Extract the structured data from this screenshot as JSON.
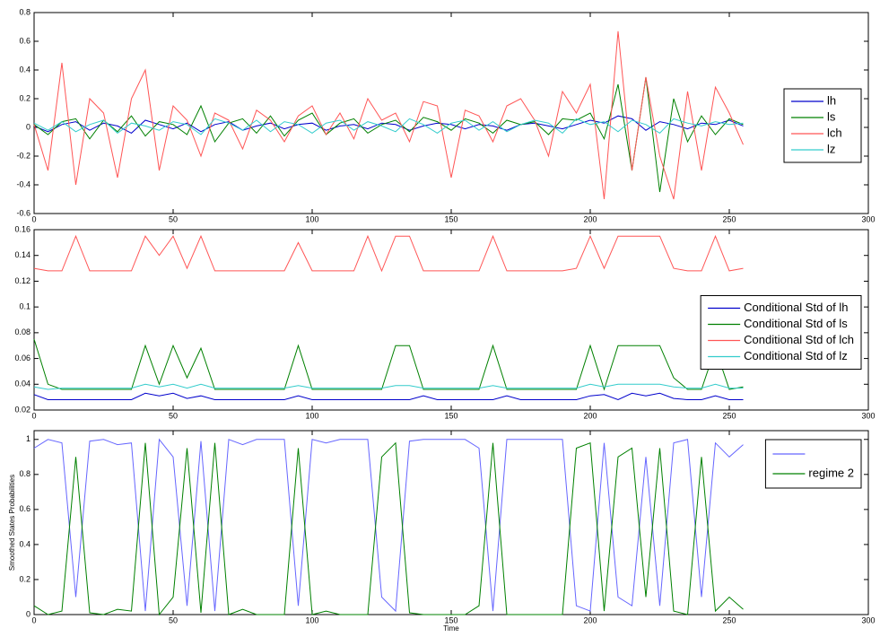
{
  "chart_data": [
    {
      "type": "line",
      "legend": "east",
      "xlim": [
        0,
        300
      ],
      "xticks": [
        0,
        50,
        100,
        150,
        200,
        250,
        300
      ],
      "ylim": [
        -0.6,
        0.8
      ],
      "yticks": [
        -0.6,
        -0.4,
        -0.2,
        0,
        0.2,
        0.4,
        0.6,
        0.8
      ],
      "x": [
        0,
        5,
        10,
        15,
        20,
        25,
        30,
        35,
        40,
        45,
        50,
        55,
        60,
        65,
        70,
        75,
        80,
        85,
        90,
        95,
        100,
        105,
        110,
        115,
        120,
        125,
        130,
        135,
        140,
        145,
        150,
        155,
        160,
        165,
        170,
        175,
        180,
        185,
        190,
        195,
        200,
        205,
        210,
        215,
        220,
        225,
        230,
        235,
        240,
        245,
        250,
        255
      ],
      "series": [
        {
          "name": "lh",
          "color": "#0000cc",
          "values": [
            0.01,
            -0.03,
            0.02,
            0.04,
            -0.02,
            0.03,
            0.01,
            -0.04,
            0.05,
            0.02,
            -0.01,
            0.03,
            -0.03,
            0.02,
            0.04,
            -0.02,
            0.01,
            0.03,
            -0.01,
            0.02,
            0.03,
            -0.02,
            0.01,
            0.02,
            -0.01,
            0.03,
            0.02,
            -0.02,
            0.01,
            0.03,
            0.02,
            -0.01,
            0.02,
            0.01,
            -0.02,
            0.02,
            0.03,
            0.01,
            -0.01,
            0.02,
            0.05,
            0.03,
            0.08,
            0.06,
            -0.02,
            0.04,
            0.02,
            -0.01,
            0.03,
            0.02,
            0.05,
            0.01
          ]
        },
        {
          "name": "ls",
          "color": "#008000",
          "values": [
            0.02,
            -0.05,
            0.04,
            0.06,
            -0.08,
            0.05,
            -0.03,
            0.08,
            -0.06,
            0.04,
            0.02,
            -0.05,
            0.15,
            -0.1,
            0.03,
            0.06,
            -0.04,
            0.08,
            -0.06,
            0.05,
            0.1,
            -0.05,
            0.03,
            0.06,
            -0.04,
            0.02,
            0.05,
            -0.03,
            0.07,
            0.04,
            -0.02,
            0.06,
            0.03,
            -0.04,
            0.05,
            0.02,
            0.04,
            -0.05,
            0.06,
            0.05,
            0.1,
            -0.08,
            0.3,
            -0.3,
            0.35,
            -0.45,
            0.2,
            -0.1,
            0.08,
            -0.05,
            0.06,
            0.02
          ]
        },
        {
          "name": "lch",
          "color": "#ff5555",
          "values": [
            0.02,
            -0.3,
            0.45,
            -0.4,
            0.2,
            0.1,
            -0.35,
            0.2,
            0.4,
            -0.3,
            0.15,
            0.05,
            -0.2,
            0.1,
            0.05,
            -0.15,
            0.12,
            0.05,
            -0.1,
            0.08,
            0.15,
            -0.05,
            0.1,
            -0.08,
            0.2,
            0.05,
            0.1,
            -0.1,
            0.18,
            0.15,
            -0.35,
            0.12,
            0.08,
            -0.1,
            0.15,
            0.2,
            0.05,
            -0.2,
            0.25,
            0.1,
            0.3,
            -0.5,
            0.67,
            -0.3,
            0.35,
            -0.2,
            -0.5,
            0.25,
            -0.3,
            0.28,
            0.1,
            -0.12
          ]
        },
        {
          "name": "lz",
          "color": "#33cccc",
          "values": [
            0.03,
            -0.02,
            0.04,
            -0.03,
            0.02,
            0.05,
            -0.04,
            0.03,
            0.01,
            -0.02,
            0.04,
            0.02,
            -0.05,
            0.06,
            0.03,
            -0.02,
            0.05,
            -0.03,
            0.04,
            0.02,
            -0.04,
            0.03,
            0.05,
            -0.02,
            0.04,
            0.01,
            -0.03,
            0.06,
            0.02,
            -0.04,
            0.03,
            0.05,
            -0.02,
            0.04,
            -0.03,
            0.02,
            0.05,
            0.03,
            -0.04,
            0.06,
            0.02,
            0.04,
            -0.03,
            0.05,
            0.02,
            -0.04,
            0.06,
            0.03,
            0.01,
            0.04,
            0.02,
            0.03
          ]
        }
      ]
    },
    {
      "type": "line",
      "legend": "east",
      "xlim": [
        0,
        300
      ],
      "xticks": [
        0,
        50,
        100,
        150,
        200,
        250,
        300
      ],
      "ylim": [
        0.02,
        0.16
      ],
      "yticks": [
        0.02,
        0.04,
        0.06,
        0.08,
        0.1,
        0.12,
        0.14,
        0.16
      ],
      "x": [
        0,
        5,
        10,
        15,
        20,
        25,
        30,
        35,
        40,
        45,
        50,
        55,
        60,
        65,
        70,
        75,
        80,
        85,
        90,
        95,
        100,
        105,
        110,
        115,
        120,
        125,
        130,
        135,
        140,
        145,
        150,
        155,
        160,
        165,
        170,
        175,
        180,
        185,
        190,
        195,
        200,
        205,
        210,
        215,
        220,
        225,
        230,
        235,
        240,
        245,
        250,
        255
      ],
      "series": [
        {
          "name": "Conditional Std of lh",
          "color": "#0000cc",
          "values": [
            0.032,
            0.028,
            0.028,
            0.028,
            0.028,
            0.028,
            0.028,
            0.028,
            0.033,
            0.031,
            0.033,
            0.029,
            0.031,
            0.028,
            0.028,
            0.028,
            0.028,
            0.028,
            0.028,
            0.031,
            0.028,
            0.028,
            0.028,
            0.028,
            0.028,
            0.028,
            0.028,
            0.028,
            0.031,
            0.028,
            0.028,
            0.028,
            0.028,
            0.028,
            0.031,
            0.028,
            0.028,
            0.028,
            0.028,
            0.028,
            0.031,
            0.032,
            0.028,
            0.033,
            0.031,
            0.033,
            0.029,
            0.028,
            0.028,
            0.031,
            0.028,
            0.028
          ]
        },
        {
          "name": "Conditional Std of  ls",
          "color": "#008000",
          "values": [
            0.075,
            0.04,
            0.036,
            0.036,
            0.036,
            0.036,
            0.036,
            0.036,
            0.07,
            0.04,
            0.07,
            0.045,
            0.068,
            0.036,
            0.036,
            0.036,
            0.036,
            0.036,
            0.036,
            0.07,
            0.036,
            0.036,
            0.036,
            0.036,
            0.036,
            0.036,
            0.07,
            0.07,
            0.036,
            0.036,
            0.036,
            0.036,
            0.036,
            0.07,
            0.036,
            0.036,
            0.036,
            0.036,
            0.036,
            0.036,
            0.07,
            0.036,
            0.07,
            0.07,
            0.07,
            0.07,
            0.045,
            0.036,
            0.036,
            0.068,
            0.036,
            0.038
          ]
        },
        {
          "name": "Conditional Std of  lch",
          "color": "#ff5555",
          "values": [
            0.13,
            0.128,
            0.128,
            0.155,
            0.128,
            0.128,
            0.128,
            0.128,
            0.155,
            0.14,
            0.155,
            0.13,
            0.155,
            0.128,
            0.128,
            0.128,
            0.128,
            0.128,
            0.128,
            0.15,
            0.128,
            0.128,
            0.128,
            0.128,
            0.155,
            0.128,
            0.155,
            0.155,
            0.128,
            0.128,
            0.128,
            0.128,
            0.128,
            0.155,
            0.128,
            0.128,
            0.128,
            0.128,
            0.128,
            0.13,
            0.155,
            0.13,
            0.155,
            0.155,
            0.155,
            0.155,
            0.13,
            0.128,
            0.128,
            0.155,
            0.128,
            0.13
          ]
        },
        {
          "name": "Conditional Std of  lz",
          "color": "#33cccc",
          "values": [
            0.038,
            0.036,
            0.037,
            0.037,
            0.037,
            0.037,
            0.037,
            0.037,
            0.04,
            0.038,
            0.04,
            0.037,
            0.04,
            0.037,
            0.037,
            0.037,
            0.037,
            0.037,
            0.037,
            0.039,
            0.037,
            0.037,
            0.037,
            0.037,
            0.037,
            0.037,
            0.039,
            0.039,
            0.037,
            0.037,
            0.037,
            0.037,
            0.037,
            0.039,
            0.037,
            0.037,
            0.037,
            0.037,
            0.037,
            0.037,
            0.04,
            0.038,
            0.04,
            0.04,
            0.04,
            0.04,
            0.038,
            0.037,
            0.037,
            0.04,
            0.037,
            0.037
          ]
        }
      ]
    },
    {
      "type": "line",
      "legend": "northeast",
      "x_label": "Time",
      "y_label": "Smoothed States Probabilities",
      "xlim": [
        0,
        300
      ],
      "xticks": [
        0,
        50,
        100,
        150,
        200,
        250,
        300
      ],
      "ylim": [
        0,
        1.05
      ],
      "yticks": [
        0,
        0.2,
        0.4,
        0.6,
        0.8,
        1
      ],
      "x": [
        0,
        5,
        10,
        15,
        20,
        25,
        30,
        35,
        40,
        45,
        50,
        55,
        60,
        65,
        70,
        75,
        80,
        85,
        90,
        95,
        100,
        105,
        110,
        115,
        120,
        125,
        130,
        135,
        140,
        145,
        150,
        155,
        160,
        165,
        170,
        175,
        180,
        185,
        190,
        195,
        200,
        205,
        210,
        215,
        220,
        225,
        230,
        235,
        240,
        245,
        250,
        255
      ],
      "series": [
        {
          "name": null,
          "color": "#6666ff",
          "values": [
            0.95,
            1,
            0.98,
            0.1,
            0.99,
            1,
            0.97,
            0.98,
            0.02,
            1,
            0.9,
            0.05,
            0.99,
            0.02,
            1,
            0.97,
            1,
            1,
            1,
            0.05,
            1,
            0.98,
            1,
            1,
            1,
            0.1,
            0.02,
            0.99,
            1,
            1,
            1,
            1,
            0.95,
            0.02,
            1,
            1,
            1,
            1,
            1,
            0.05,
            0.02,
            0.98,
            0.1,
            0.05,
            0.9,
            0.05,
            0.98,
            1,
            0.1,
            0.98,
            0.9,
            0.97
          ]
        },
        {
          "name": "regime 2",
          "color": "#008000",
          "values": [
            0.05,
            0,
            0.02,
            0.9,
            0.01,
            0,
            0.03,
            0.02,
            0.98,
            0,
            0.1,
            0.95,
            0.01,
            0.98,
            0,
            0.03,
            0,
            0,
            0,
            0.95,
            0,
            0.02,
            0,
            0,
            0,
            0.9,
            0.98,
            0.01,
            0,
            0,
            0,
            0,
            0.05,
            0.98,
            0,
            0,
            0,
            0,
            0,
            0.95,
            0.98,
            0.02,
            0.9,
            0.95,
            0.1,
            0.95,
            0.02,
            0,
            0.9,
            0.02,
            0.1,
            0.03
          ]
        }
      ]
    }
  ]
}
